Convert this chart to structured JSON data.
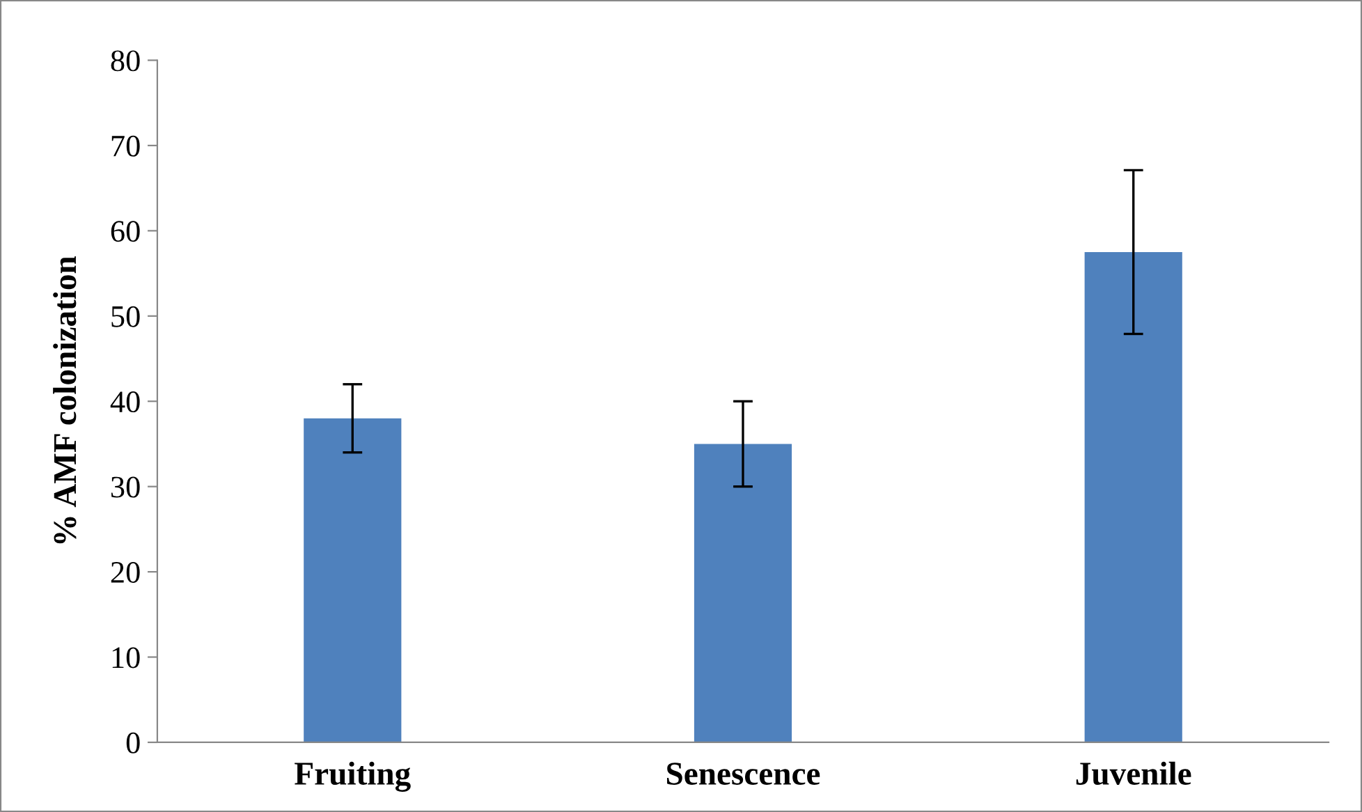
{
  "chart_data": {
    "type": "bar",
    "ylabel": "% AMF colonization",
    "categories": [
      "Fruiting",
      "Senescence",
      "Juvenile"
    ],
    "values": [
      38,
      35,
      57.5
    ],
    "errors": [
      4,
      5,
      9.6
    ],
    "color": "#4f81bd",
    "ylim": [
      0,
      80
    ],
    "yticks": [
      0,
      10,
      20,
      30,
      40,
      50,
      60,
      70,
      80
    ],
    "grid": false,
    "legend": false
  }
}
